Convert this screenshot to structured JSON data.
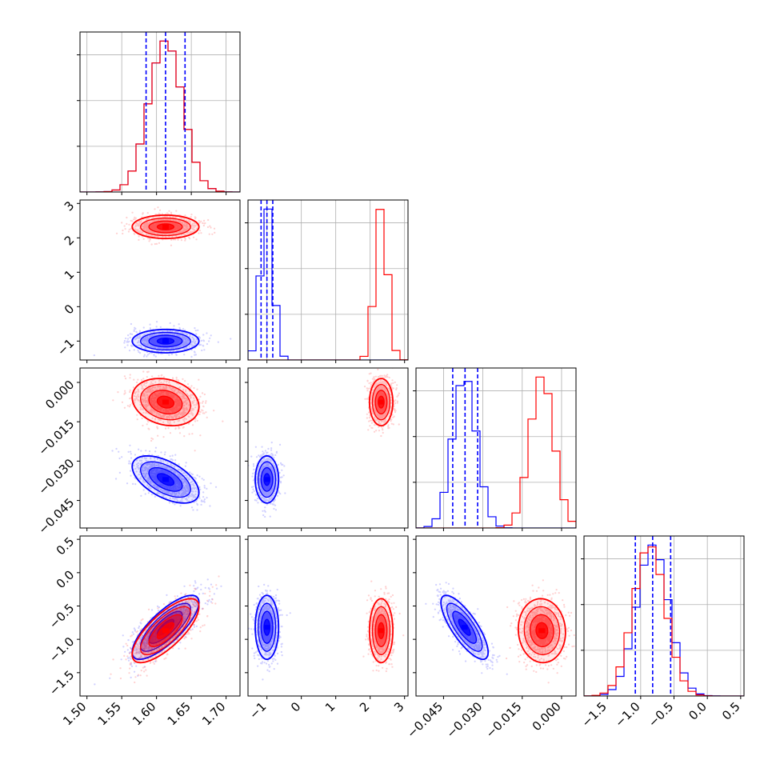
{
  "chart_data": {
    "type": "corner",
    "title": "",
    "colors": {
      "series_a": "#0000ff",
      "series_b": "#ff0000"
    },
    "parameters": [
      {
        "range": [
          1.49,
          1.72
        ],
        "ticks": [
          1.5,
          1.55,
          1.6,
          1.65,
          1.7
        ],
        "tick_labels": [
          "1.50",
          "1.55",
          "1.60",
          "1.65",
          "1.70"
        ],
        "label": ""
      },
      {
        "range": [
          -1.55,
          3.1
        ],
        "ticks": [
          -1,
          0,
          1,
          2,
          3
        ],
        "tick_labels": [
          "−1",
          "0",
          "1",
          "2",
          "3"
        ],
        "label": ""
      },
      {
        "range": [
          -0.0555,
          0.0055
        ],
        "ticks": [
          -0.045,
          -0.03,
          -0.015,
          0.0
        ],
        "tick_labels": [
          "−0.045",
          "−0.030",
          "−0.015",
          "0.000"
        ],
        "label": ""
      },
      {
        "range": [
          -1.85,
          0.55
        ],
        "ticks": [
          -1.5,
          -1.0,
          -0.5,
          0.0,
          0.5
        ],
        "tick_labels": [
          "−1.5",
          "−1.0",
          "−0.5",
          "0.0",
          "0.5"
        ],
        "label": ""
      }
    ],
    "series": [
      {
        "color": "#0000ff",
        "means": [
          1.613,
          -1.0,
          -0.037,
          -0.82
        ],
        "stds": [
          0.024,
          0.17,
          0.0045,
          0.24
        ],
        "correlations": [
          [
            0,
            2,
            -0.55
          ],
          [
            0,
            3,
            0.78
          ],
          [
            2,
            3,
            -0.78
          ]
        ],
        "quantiles": [
          [
            1.585,
            1.613,
            1.641
          ],
          [
            -1.17,
            -1.0,
            -0.83
          ],
          [
            -0.0415,
            -0.0368,
            -0.032
          ],
          [
            -1.08,
            -0.82,
            -0.55
          ]
        ]
      },
      {
        "color": "#ff0000",
        "means": [
          1.613,
          2.32,
          -0.0075,
          -0.87
        ],
        "stds": [
          0.024,
          0.17,
          0.0045,
          0.24
        ],
        "correlations": [
          [
            0,
            2,
            -0.2
          ],
          [
            0,
            3,
            0.75
          ],
          [
            2,
            3,
            -0.05
          ]
        ]
      }
    ],
    "quantile_line_color": "#0000ff",
    "grid": true,
    "legend": "none"
  }
}
